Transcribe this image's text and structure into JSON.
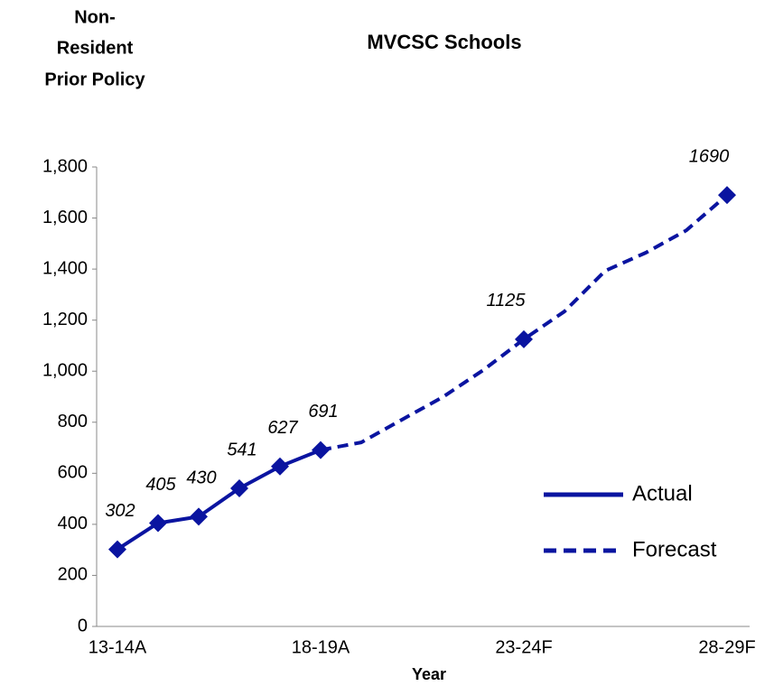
{
  "chart_data": {
    "type": "line",
    "title": "MVCSC Schools",
    "annotation": [
      "Non-",
      "Resident",
      "Prior Policy"
    ],
    "x_label": "Year",
    "categories": [
      "13-14A",
      null,
      null,
      null,
      null,
      "18-19A",
      null,
      null,
      null,
      null,
      "23-24F",
      null,
      null,
      null,
      null,
      "28-29F"
    ],
    "series": [
      {
        "name": "Actual",
        "color": "#0a14a0",
        "dash": false,
        "values": [
          302,
          405,
          430,
          541,
          627,
          691,
          null,
          null,
          null,
          null,
          null,
          null,
          null,
          null,
          null,
          null
        ],
        "value_labels": [
          "302",
          "405",
          "430",
          "541",
          "627",
          "691",
          null,
          null,
          null,
          null,
          null,
          null,
          null,
          null,
          null,
          null
        ]
      },
      {
        "name": "Forecast",
        "color": "#0a14a0",
        "dash": true,
        "values": [
          null,
          null,
          null,
          null,
          null,
          691,
          721,
          810,
          898,
          1004,
          1125,
          1234,
          1393,
          1464,
          1552,
          1690
        ],
        "value_labels": [
          null,
          null,
          null,
          null,
          null,
          null,
          null,
          null,
          null,
          null,
          "1125",
          null,
          null,
          null,
          null,
          "1690"
        ]
      }
    ],
    "ylim": [
      0,
      1800
    ],
    "yticks": [
      0,
      200,
      400,
      600,
      800,
      {
        "value": 1000,
        "label": "1,000"
      },
      {
        "value": 1200,
        "label": "1,200"
      },
      {
        "value": 1400,
        "label": "1,400"
      },
      {
        "value": 1600,
        "label": "1,600"
      },
      {
        "value": 1800,
        "label": "1,800"
      }
    ],
    "legend": "lower right"
  }
}
